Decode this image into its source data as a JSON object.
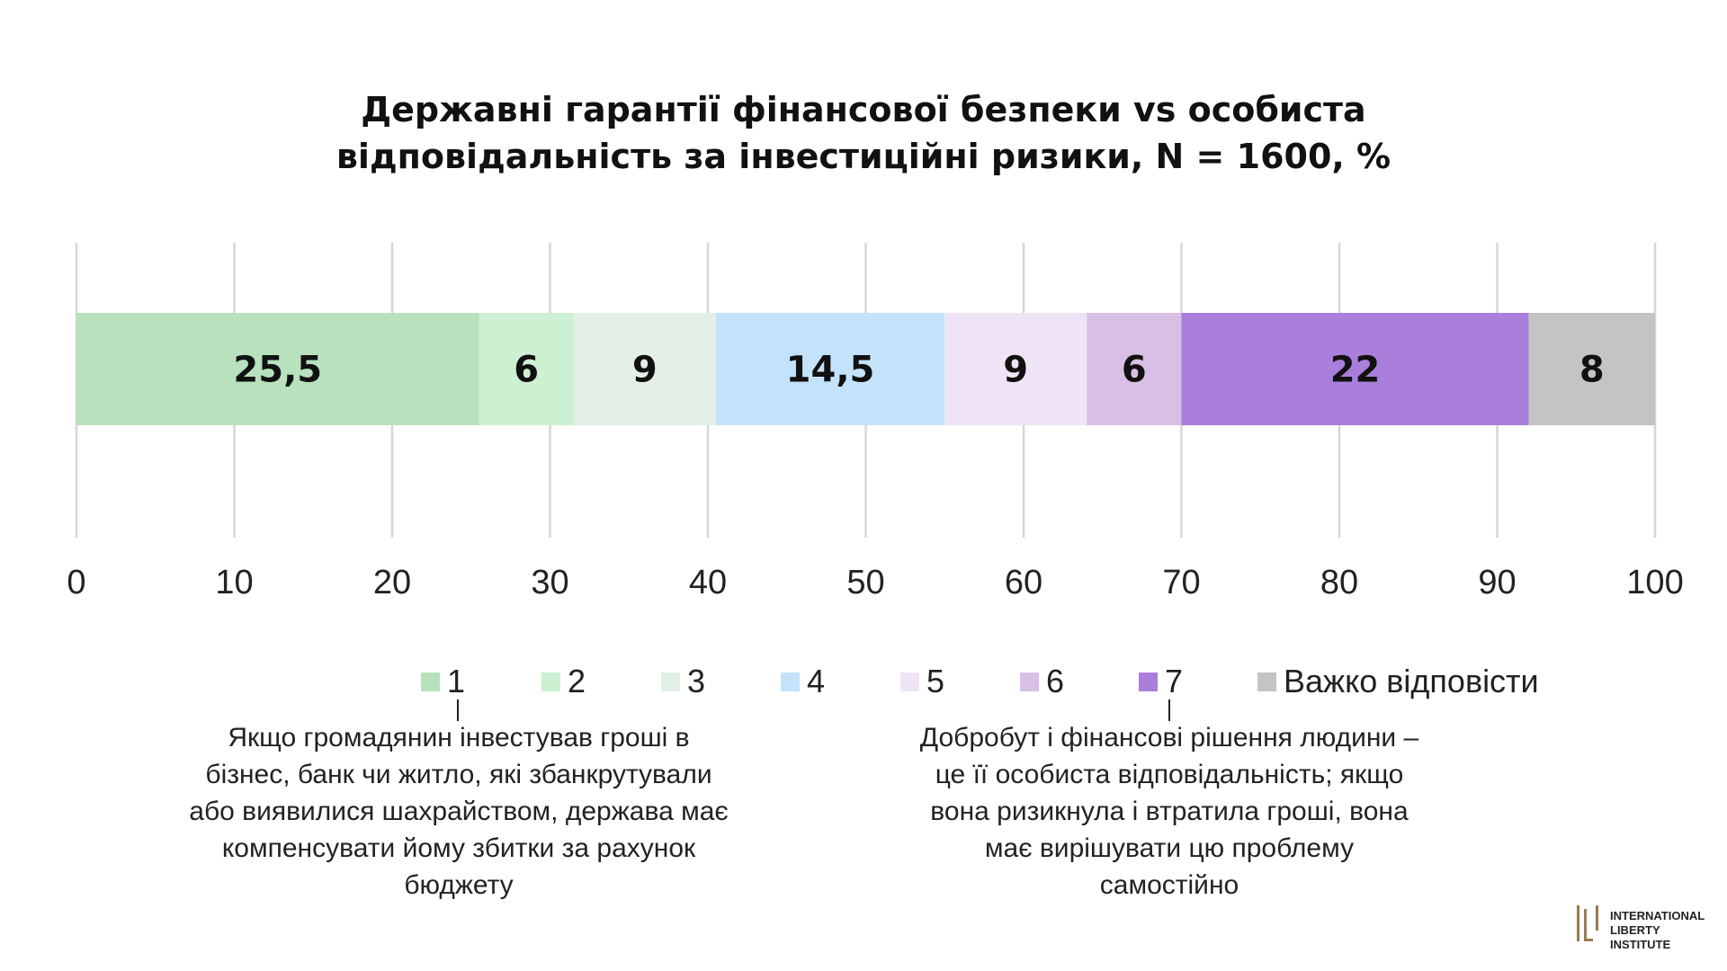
{
  "chart_data": {
    "type": "bar",
    "orientation": "horizontal-stacked",
    "title_lines": [
      "Державні гарантії фінансової безпеки vs особиста",
      "відповідальність за інвестиційні ризики, N = 1600, %"
    ],
    "xlim": [
      0,
      100
    ],
    "x_ticks": [
      0,
      10,
      20,
      30,
      40,
      50,
      60,
      70,
      80,
      90,
      100
    ],
    "grid": true,
    "legend_position": "bottom",
    "series": [
      {
        "name": "1",
        "value": 25.5,
        "label": "25,5",
        "color": "#b7e2bd"
      },
      {
        "name": "2",
        "value": 6,
        "label": "6",
        "color": "#cdf0d2"
      },
      {
        "name": "3",
        "value": 9,
        "label": "9",
        "color": "#e2f0e6"
      },
      {
        "name": "4",
        "value": 14.5,
        "label": "14,5",
        "color": "#c4e3fb"
      },
      {
        "name": "5",
        "value": 9,
        "label": "9",
        "color": "#efe4f6"
      },
      {
        "name": "6",
        "value": 6,
        "label": "6",
        "color": "#d8bfe6"
      },
      {
        "name": "7",
        "value": 22,
        "label": "22",
        "color": "#a97fdb"
      },
      {
        "name": "Важко відповісти",
        "value": 8,
        "label": "8",
        "color": "#c4c4c4"
      }
    ],
    "annotations": [
      "Якщо громадянин інвестував гроші в бізнес, банк чи житло, які збанкрутували або виявилися шахрайством, держава має компенсувати йому збитки за рахунок бюджету",
      "Добробут і фінансові рішення людини – це її особиста відповідальність; якщо вона ризикнула і втратила гроші, вона має вирішувати цю проблему самостійно"
    ]
  },
  "notes": {
    "left_lines": [
      "Якщо громадянин інвестував гроші в",
      "бізнес, банк чи житло, які збанкрутували",
      "або виявилися шахрайством, держава має",
      "компенсувати йому збитки за рахунок",
      "бюджету"
    ],
    "right_lines": [
      "Добробут і фінансові рішення людини –",
      "це її особиста відповідальність; якщо",
      "вона ризикнула і втратила гроші, вона",
      "має вирішувати цю проблему",
      "самостійно"
    ]
  },
  "logo": {
    "line1": "INTERNATIONAL",
    "line2": "LIBERTY INSTITUTE",
    "color": "#9a7b56"
  }
}
